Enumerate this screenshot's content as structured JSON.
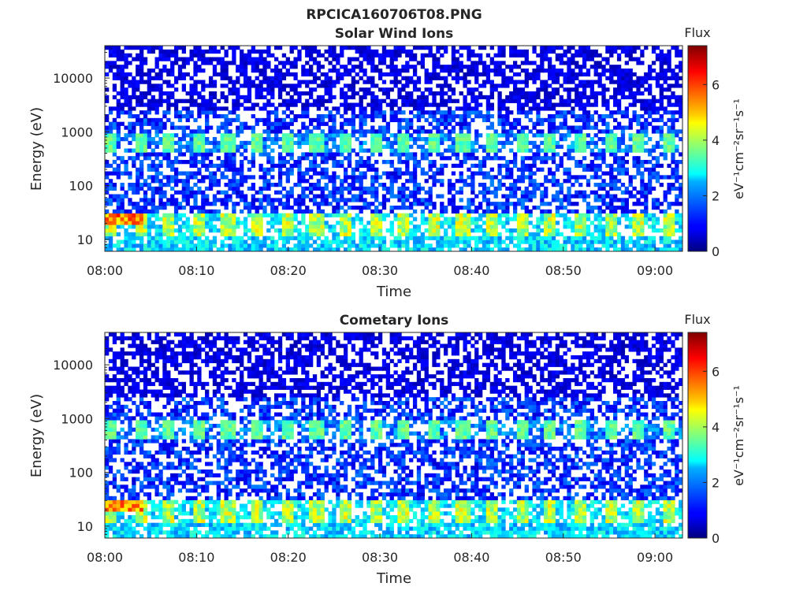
{
  "figure_title": "RPCICA160706T08.PNG",
  "colors": {
    "colormap": "jet",
    "background": "#ffffff",
    "axis": "#262626"
  },
  "chart_data": [
    {
      "type": "heatmap",
      "title": "Solar Wind Ions",
      "xlabel": "Time",
      "ylabel": "Energy (eV)",
      "yscale": "log",
      "ylim": [
        6,
        40000
      ],
      "xlim": [
        "08:00",
        "09:03"
      ],
      "x_tick_labels": [
        "08:00",
        "08:10",
        "08:20",
        "08:30",
        "08:40",
        "08:50",
        "09:00"
      ],
      "y_tick_labels": [
        "10",
        "100",
        "1000",
        "10000"
      ],
      "colorbar": {
        "title": "Flux",
        "label": "eV⁻¹cm⁻²sr⁻¹s⁻¹",
        "range": [
          0,
          7.4
        ],
        "tick_labels": [
          "0",
          "2",
          "4",
          "6"
        ]
      },
      "features": {
        "period_minutes": 3.2,
        "high_energy_band_eV": 600,
        "low_energy_band_eV": 18,
        "peak_flux": 6.5
      }
    },
    {
      "type": "heatmap",
      "title": "Cometary Ions",
      "xlabel": "Time",
      "ylabel": "Energy (eV)",
      "yscale": "log",
      "ylim": [
        6,
        40000
      ],
      "xlim": [
        "08:00",
        "09:03"
      ],
      "x_tick_labels": [
        "08:00",
        "08:10",
        "08:20",
        "08:30",
        "08:40",
        "08:50",
        "09:00"
      ],
      "y_tick_labels": [
        "10",
        "100",
        "1000",
        "10000"
      ],
      "colorbar": {
        "title": "Flux",
        "label": "eV⁻¹cm⁻²sr⁻¹s⁻¹",
        "range": [
          0,
          7.4
        ],
        "tick_labels": [
          "0",
          "2",
          "4",
          "6"
        ]
      },
      "features": {
        "period_minutes": 3.2,
        "high_energy_band_eV": 600,
        "low_energy_band_eV": 18,
        "peak_flux": 6.6
      }
    }
  ]
}
